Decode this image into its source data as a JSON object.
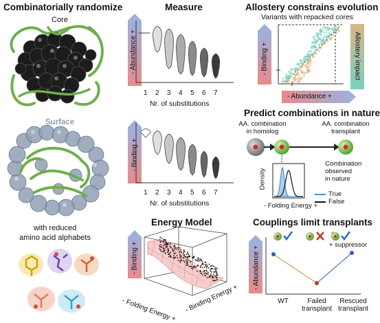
{
  "panels": {
    "randomize": {
      "title": "Combinatorially randomize",
      "core_label": "Core",
      "surface_label": "Surface",
      "alphabet_caption_1": "with reduced",
      "alphabet_caption_2": "amino acid alphabets"
    },
    "measure": {
      "title": "Measure",
      "top_ylabel": "- Abundance +",
      "bottom_ylabel": "- Binding +",
      "xticks": [
        "1",
        "2",
        "3",
        "4",
        "5",
        "6",
        "7"
      ],
      "xlabel": "Nr. of substitutions"
    },
    "allostery": {
      "title": "Allostery constrains evolution",
      "subtitle": "Variants with repacked cores",
      "ylabel": "- Binding +",
      "xlabel": "- Abundance +",
      "side_label": "Allostery impact"
    },
    "predict": {
      "title": "Predict combinations in nature",
      "homolog_label_1": "AA. combination",
      "homolog_label_2": "in homolog",
      "transplant_label_1": "AA. combination",
      "transplant_label_2": "transplant",
      "density_label": "Density",
      "energy_label": "- Folding Energy +",
      "observed_1": "Combination",
      "observed_2": "observed",
      "observed_3": "in nature",
      "legend_true": "True",
      "legend_false": "False"
    },
    "energy": {
      "title": "Energy Model",
      "ylabel": "- Binding +",
      "xlabel": "- Folding Energy +",
      "zlabel": "- Binding Energy +"
    },
    "couplings": {
      "title": "Couplings limit transplants",
      "ylabel": "- Abundance +",
      "suppressor": "+ suppressor",
      "categories": [
        "WT",
        "Failed\ntransplant",
        "Rescued\ntransplant"
      ],
      "cat1": "WT",
      "cat2a": "Failed",
      "cat2b": "transplant",
      "cat3a": "Rescued",
      "cat3b": "transplant"
    }
  },
  "colors": {
    "protein_green": "#6fae4c",
    "core_sphere": "#1c1c1c",
    "surface_sphere": "#8fa0b4",
    "arrow_blue": "#8f9fcf",
    "arrow_red": "#e07a7a",
    "teal": "#7ccfc0",
    "orange": "#e0a85a",
    "check_blue": "#2f6fc2",
    "cross_red": "#c0392b"
  }
}
